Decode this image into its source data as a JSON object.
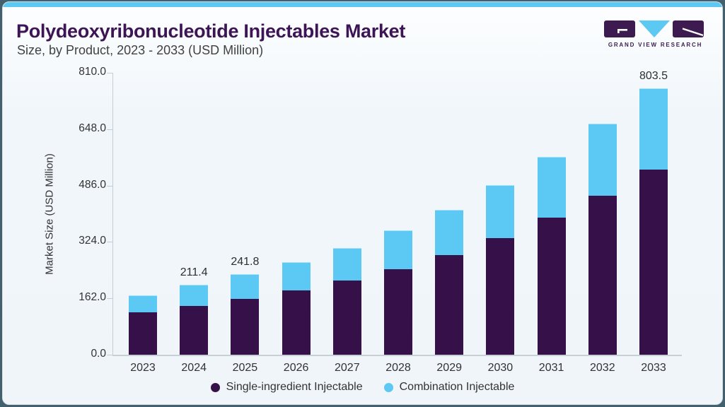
{
  "header": {
    "title": "Polydeoxyribonucleotide Injectables Market",
    "subtitle": "Size, by Product, 2023 - 2033 (USD Million)",
    "logo_text": "GRAND VIEW RESEARCH"
  },
  "chart_data": {
    "type": "bar",
    "stacked": true,
    "title": "Polydeoxyribonucleotide Injectables Market Size, by Product, 2023 - 2033 (USD Million)",
    "xlabel": "",
    "ylabel": "Market Size (USD Million)",
    "categories": [
      "2023",
      "2024",
      "2025",
      "2026",
      "2027",
      "2028",
      "2029",
      "2030",
      "2031",
      "2032",
      "2033"
    ],
    "series": [
      {
        "name": "Single-ingredient Injectable",
        "color": "#361149",
        "values": [
          127.6,
          147.6,
          169.0,
          194.2,
          222.6,
          258.4,
          301.2,
          351.2,
          412.7,
          478.5,
          557.9
        ]
      },
      {
        "name": "Combination Injectable",
        "color": "#5bc9f4",
        "values": [
          51.0,
          63.8,
          72.8,
          85.6,
          99.4,
          115.8,
          134.5,
          159.5,
          184.4,
          217.2,
          245.6
        ]
      }
    ],
    "totals": [
      178.6,
      211.4,
      241.8,
      279.8,
      322.0,
      374.2,
      435.7,
      510.7,
      597.1,
      695.7,
      803.5
    ],
    "bar_labels": [
      "",
      "211.4",
      "241.8",
      "",
      "",
      "",
      "",
      "",
      "",
      "",
      "803.5"
    ],
    "yticks": [
      0,
      162,
      324,
      486,
      648,
      810
    ],
    "ytick_labels": [
      "0.0",
      "162.0",
      "324.0",
      "486.0",
      "648.0",
      "810.0"
    ],
    "ylim": [
      0,
      810
    ],
    "grid": false,
    "legend_position": "bottom",
    "accent_color": "#5cc9f2",
    "title_color": "#3d1456"
  }
}
